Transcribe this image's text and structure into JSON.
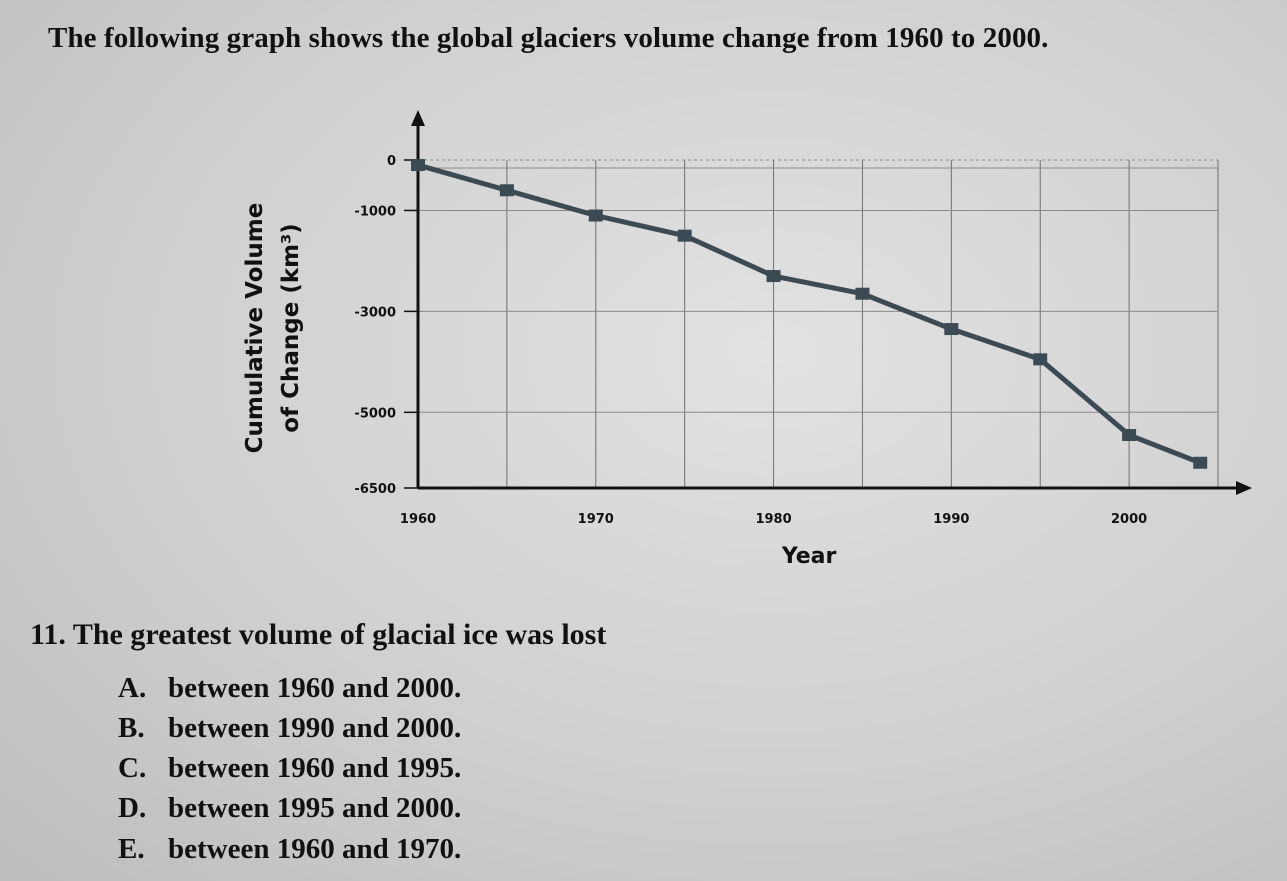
{
  "intro": "The following graph shows the global glaciers volume change from 1960 to 2000.",
  "chart_data": {
    "type": "line",
    "title": "",
    "xlabel": "Year",
    "ylabel_lines": [
      "Cumulative Volume",
      "of Change (km³)"
    ],
    "xlim": [
      1960,
      2005
    ],
    "ylim": [
      -6500,
      0
    ],
    "xticks": [
      1960,
      1970,
      1980,
      1990,
      2000
    ],
    "yticks": [
      0,
      -1000,
      -3000,
      -5000,
      -6500
    ],
    "x": [
      1960,
      1965,
      1970,
      1975,
      1980,
      1985,
      1990,
      1995,
      2000,
      2004
    ],
    "values": [
      -100,
      -600,
      -1100,
      -1500,
      -2300,
      -2650,
      -3350,
      -3950,
      -5450,
      -6000
    ],
    "grid": true,
    "line_color": "#3c4a54"
  },
  "question": {
    "number": "11.",
    "stem": "The greatest volume of glacial ice was lost",
    "options": [
      {
        "letter": "A.",
        "text": "between 1960 and 2000."
      },
      {
        "letter": "B.",
        "text": "between 1990 and 2000."
      },
      {
        "letter": "C.",
        "text": "between 1960 and 1995."
      },
      {
        "letter": "D.",
        "text": "between 1995 and 2000."
      },
      {
        "letter": "E.",
        "text": "between 1960 and 1970."
      }
    ]
  }
}
